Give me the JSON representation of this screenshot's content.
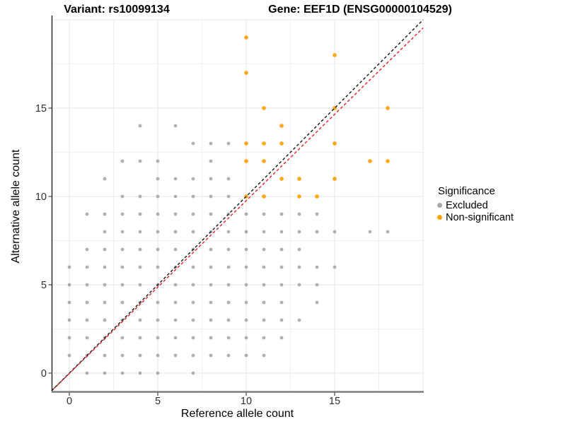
{
  "titles": {
    "left": "Variant: rs10099134",
    "right": "Gene: EEF1D (ENSG00000104529)"
  },
  "axes": {
    "xlabel": "Reference allele count",
    "ylabel": "Alternative allele count"
  },
  "legend": {
    "title": "Significance",
    "items": [
      {
        "label": "Excluded",
        "color": "#A8A8A8"
      },
      {
        "label": "Non-significant",
        "color": "#FFA411"
      }
    ]
  },
  "chart_data": {
    "type": "scatter",
    "title": "Variant: rs10099134 | Gene: EEF1D (ENSG00000104529)",
    "xlabel": "Reference allele count",
    "ylabel": "Alternative allele count",
    "xlim": [
      -1,
      20
    ],
    "ylim": [
      -1.06,
      20
    ],
    "xticks": [
      0,
      5,
      10,
      15
    ],
    "yticks": [
      0,
      5,
      10,
      15
    ],
    "minor_gridlines": [
      2.5,
      7.5,
      12.5,
      17.5
    ],
    "edge_gridlines": [
      20
    ],
    "grid": "on",
    "legend_position": "right",
    "colors": {
      "excluded": "#A2A2A2",
      "non_significant": "#FFA411",
      "identity_line": "#141414",
      "fit_line": "#EC1C24",
      "major_grid": "#E4E4E4",
      "minor_grid": "#F1F1F1",
      "x_axis_line": "#7F7F7F",
      "y_axis_line": "#000000",
      "tick_text": "#2E2E2E"
    },
    "series": [
      {
        "name": "Excluded",
        "color": "#A2A2A2",
        "radius": 2.4,
        "opacity": 0.85,
        "points": [
          [
            1,
            0
          ],
          [
            2,
            0
          ],
          [
            3,
            0
          ],
          [
            4,
            0
          ],
          [
            5,
            0
          ],
          [
            7,
            0
          ],
          [
            0,
            1
          ],
          [
            1,
            1
          ],
          [
            2,
            1
          ],
          [
            3,
            1
          ],
          [
            4,
            1
          ],
          [
            5,
            1
          ],
          [
            6,
            1
          ],
          [
            7,
            1
          ],
          [
            8,
            1
          ],
          [
            9,
            1
          ],
          [
            10,
            1
          ],
          [
            11,
            1
          ],
          [
            0,
            2
          ],
          [
            1,
            2
          ],
          [
            2,
            2
          ],
          [
            3,
            2
          ],
          [
            4,
            2
          ],
          [
            5,
            2
          ],
          [
            6,
            2
          ],
          [
            7,
            2
          ],
          [
            8,
            2
          ],
          [
            9,
            2
          ],
          [
            10,
            2
          ],
          [
            11,
            2
          ],
          [
            12,
            2
          ],
          [
            0,
            3
          ],
          [
            1,
            3
          ],
          [
            2,
            3
          ],
          [
            3,
            3
          ],
          [
            4,
            3
          ],
          [
            5,
            3
          ],
          [
            6,
            3
          ],
          [
            7,
            3
          ],
          [
            8,
            3
          ],
          [
            9,
            3
          ],
          [
            10,
            3
          ],
          [
            11,
            3
          ],
          [
            12,
            3
          ],
          [
            13,
            3
          ],
          [
            0,
            4
          ],
          [
            1,
            4
          ],
          [
            2,
            4
          ],
          [
            3,
            4
          ],
          [
            4,
            4
          ],
          [
            5,
            4
          ],
          [
            6,
            4
          ],
          [
            7,
            4
          ],
          [
            8,
            4
          ],
          [
            9,
            4
          ],
          [
            10,
            4
          ],
          [
            11,
            4
          ],
          [
            12,
            4
          ],
          [
            14,
            4
          ],
          [
            0,
            5
          ],
          [
            1,
            5
          ],
          [
            2,
            5
          ],
          [
            3,
            5
          ],
          [
            4,
            5
          ],
          [
            5,
            5
          ],
          [
            6,
            5
          ],
          [
            7,
            5
          ],
          [
            8,
            5
          ],
          [
            9,
            5
          ],
          [
            10,
            5
          ],
          [
            11,
            5
          ],
          [
            12,
            5
          ],
          [
            13,
            5
          ],
          [
            14,
            5
          ],
          [
            0,
            6
          ],
          [
            1,
            6
          ],
          [
            2,
            6
          ],
          [
            3,
            6
          ],
          [
            4,
            6
          ],
          [
            5,
            6
          ],
          [
            6,
            6
          ],
          [
            7,
            6
          ],
          [
            8,
            6
          ],
          [
            9,
            6
          ],
          [
            10,
            6
          ],
          [
            11,
            6
          ],
          [
            12,
            6
          ],
          [
            13,
            6
          ],
          [
            14,
            6
          ],
          [
            15,
            6
          ],
          [
            1,
            7
          ],
          [
            2,
            7
          ],
          [
            3,
            7
          ],
          [
            4,
            7
          ],
          [
            5,
            7
          ],
          [
            6,
            7
          ],
          [
            7,
            7
          ],
          [
            8,
            7
          ],
          [
            9,
            7
          ],
          [
            10,
            7
          ],
          [
            11,
            7
          ],
          [
            12,
            7
          ],
          [
            13,
            7
          ],
          [
            2,
            8
          ],
          [
            3,
            8
          ],
          [
            4,
            8
          ],
          [
            5,
            8
          ],
          [
            6,
            8
          ],
          [
            7,
            8
          ],
          [
            8,
            8
          ],
          [
            9,
            8
          ],
          [
            10,
            8
          ],
          [
            11,
            8
          ],
          [
            12,
            8
          ],
          [
            13,
            8
          ],
          [
            14,
            8
          ],
          [
            15,
            8
          ],
          [
            17,
            8
          ],
          [
            18,
            8
          ],
          [
            1,
            9
          ],
          [
            2,
            9
          ],
          [
            3,
            9
          ],
          [
            4,
            9
          ],
          [
            5,
            9
          ],
          [
            6,
            9
          ],
          [
            7,
            9
          ],
          [
            8,
            9
          ],
          [
            9,
            9
          ],
          [
            10,
            9
          ],
          [
            11,
            9
          ],
          [
            12,
            9
          ],
          [
            13,
            9
          ],
          [
            14,
            9
          ],
          [
            3,
            10
          ],
          [
            4,
            10
          ],
          [
            5,
            10
          ],
          [
            6,
            10
          ],
          [
            7,
            10
          ],
          [
            8,
            10
          ],
          [
            9,
            10
          ],
          [
            2,
            11
          ],
          [
            5,
            11
          ],
          [
            6,
            11
          ],
          [
            7,
            11
          ],
          [
            8,
            11
          ],
          [
            9,
            11
          ],
          [
            3,
            12
          ],
          [
            4,
            12
          ],
          [
            5,
            12
          ],
          [
            8,
            12
          ],
          [
            7,
            13
          ],
          [
            8,
            13
          ],
          [
            9,
            13
          ],
          [
            4,
            14
          ],
          [
            6,
            14
          ]
        ]
      },
      {
        "name": "Non-significant",
        "color": "#FFA411",
        "radius": 2.9,
        "opacity": 0.95,
        "points": [
          [
            10,
            10
          ],
          [
            11,
            10
          ],
          [
            13,
            10
          ],
          [
            14,
            10
          ],
          [
            12,
            11
          ],
          [
            13,
            11
          ],
          [
            15,
            11
          ],
          [
            10,
            12
          ],
          [
            11,
            12
          ],
          [
            17,
            12
          ],
          [
            18,
            12
          ],
          [
            10,
            13
          ],
          [
            11,
            13
          ],
          [
            12,
            13
          ],
          [
            15,
            13
          ],
          [
            12,
            14
          ],
          [
            11,
            15
          ],
          [
            15,
            15
          ],
          [
            18,
            15
          ],
          [
            10,
            17
          ],
          [
            15,
            18
          ],
          [
            10,
            19
          ]
        ]
      }
    ],
    "lines": [
      {
        "name": "identity-line",
        "color": "#141414",
        "dash": "4 3",
        "x1": -1,
        "y1": -1,
        "x2": 20,
        "y2": 20
      },
      {
        "name": "fit-line",
        "color": "#EC1C24",
        "dash": "4 3",
        "x1": -1,
        "y1": -0.998,
        "x2": 20,
        "y2": 19.54
      }
    ]
  }
}
